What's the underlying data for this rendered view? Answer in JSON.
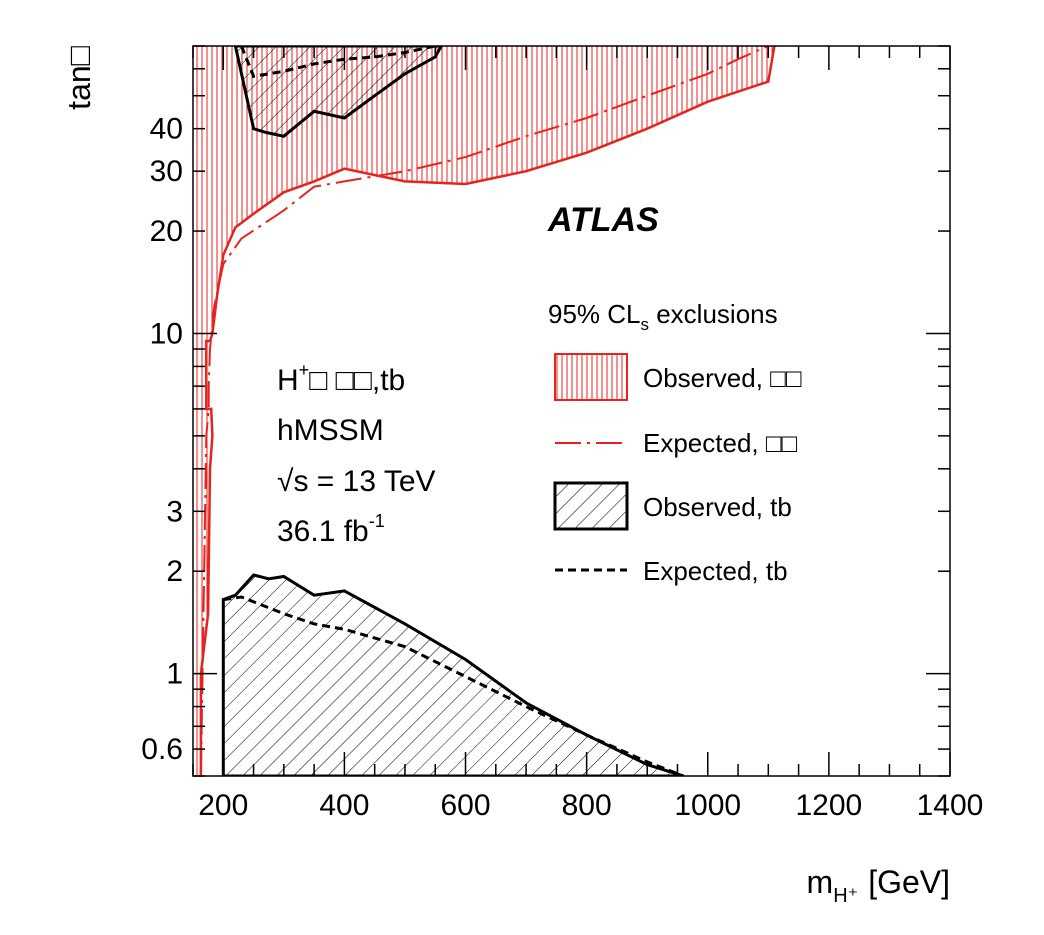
{
  "chart_data": {
    "type": "area",
    "title": "",
    "xlabel": "m",
    "xlabel_sub": "H⁺",
    "xlabel_unit": "[GeV]",
    "ylabel": "tan□",
    "xlim": [
      150,
      1400
    ],
    "ylim": [
      0.5,
      70
    ],
    "yscale": "log",
    "x_ticks": [
      200,
      400,
      600,
      800,
      1000,
      1200,
      1400
    ],
    "x_tick_labels": [
      "200",
      "400",
      "600",
      "800",
      "1000",
      "1200",
      "1400"
    ],
    "y_ticks": [
      0.6,
      1,
      2,
      3,
      10,
      20,
      30,
      40
    ],
    "y_tick_labels": [
      "0.6",
      "1",
      "2",
      "3",
      "10",
      "20",
      "30",
      "40"
    ],
    "brand": "ATLAS",
    "annotations": {
      "process_main": "H",
      "process_sup": "+",
      "process_rest": "□  □□,tb",
      "model": "hMSSM",
      "energy_sqrt": "√",
      "energy_rest": "s = 13 TeV",
      "lumi_main": "36.1 fb",
      "lumi_sup": "-1"
    },
    "legend": {
      "title_main": "95% CL",
      "title_sub": "s",
      "title_rest": " exclusions",
      "entries": [
        {
          "label": "Observed, □□",
          "style": "red-hatch"
        },
        {
          "label": "Expected, □□",
          "style": "red-dashdot"
        },
        {
          "label": "Observed, tb",
          "style": "black-hatch"
        },
        {
          "label": "Expected, tb",
          "style": "black-dashed"
        }
      ]
    },
    "colors": {
      "taunu": "#e8231e",
      "tb": "#000000"
    },
    "series": [
      {
        "name": "Observed, τν (exclusion boundary)",
        "points": [
          [
            163,
            0.5
          ],
          [
            163,
            1
          ],
          [
            175,
            1.5
          ],
          [
            178,
            4
          ],
          [
            182,
            5
          ],
          [
            180,
            6
          ],
          [
            172,
            6
          ],
          [
            172,
            9.5
          ],
          [
            178,
            9.5
          ],
          [
            182,
            10
          ],
          [
            190,
            13
          ],
          [
            200,
            17
          ],
          [
            220,
            20.5
          ],
          [
            250,
            22.5
          ],
          [
            300,
            26
          ],
          [
            350,
            28
          ],
          [
            400,
            30.5
          ],
          [
            500,
            28
          ],
          [
            600,
            27.5
          ],
          [
            700,
            30
          ],
          [
            800,
            34
          ],
          [
            900,
            40
          ],
          [
            1000,
            48
          ],
          [
            1100,
            55
          ],
          [
            1110,
            70
          ]
        ]
      },
      {
        "name": "Expected, τν",
        "points": [
          [
            163,
            0.5
          ],
          [
            170,
            3
          ],
          [
            172,
            5
          ],
          [
            176,
            6
          ],
          [
            176,
            7
          ],
          [
            178,
            9
          ],
          [
            185,
            12
          ],
          [
            200,
            16
          ],
          [
            230,
            19
          ],
          [
            300,
            23
          ],
          [
            350,
            27
          ],
          [
            400,
            28
          ],
          [
            500,
            30
          ],
          [
            600,
            33
          ],
          [
            700,
            38
          ],
          [
            800,
            43
          ],
          [
            900,
            50
          ],
          [
            1000,
            58
          ],
          [
            1050,
            64
          ],
          [
            1100,
            70
          ]
        ]
      },
      {
        "name": "Observed, tb (low tanβ)",
        "points": [
          [
            200,
            0.5
          ],
          [
            200,
            1.65
          ],
          [
            220,
            1.7
          ],
          [
            250,
            1.95
          ],
          [
            275,
            1.9
          ],
          [
            300,
            1.93
          ],
          [
            350,
            1.7
          ],
          [
            400,
            1.75
          ],
          [
            500,
            1.4
          ],
          [
            600,
            1.1
          ],
          [
            700,
            0.82
          ],
          [
            800,
            0.66
          ],
          [
            900,
            0.54
          ],
          [
            960,
            0.5
          ]
        ]
      },
      {
        "name": "Expected, tb (low tanβ)",
        "points": [
          [
            200,
            1.65
          ],
          [
            230,
            1.68
          ],
          [
            300,
            1.5
          ],
          [
            350,
            1.4
          ],
          [
            400,
            1.35
          ],
          [
            500,
            1.2
          ],
          [
            600,
            0.98
          ],
          [
            700,
            0.8
          ],
          [
            800,
            0.66
          ],
          [
            900,
            0.55
          ],
          [
            960,
            0.5
          ]
        ]
      },
      {
        "name": "Observed, tb (high tanβ)",
        "points": [
          [
            220,
            70
          ],
          [
            250,
            40
          ],
          [
            270,
            39
          ],
          [
            300,
            38
          ],
          [
            350,
            45
          ],
          [
            400,
            43
          ],
          [
            450,
            50
          ],
          [
            500,
            58
          ],
          [
            550,
            65
          ],
          [
            560,
            70
          ]
        ]
      },
      {
        "name": "Expected, tb (high tanβ)",
        "points": [
          [
            230,
            70
          ],
          [
            250,
            57
          ],
          [
            300,
            59
          ],
          [
            350,
            62
          ],
          [
            400,
            64
          ],
          [
            450,
            65
          ],
          [
            500,
            67
          ],
          [
            550,
            70
          ]
        ]
      }
    ]
  }
}
